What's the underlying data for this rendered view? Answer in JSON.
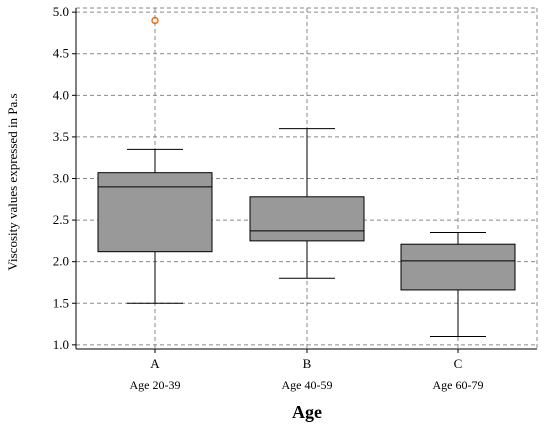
{
  "chart_data": {
    "type": "box",
    "ylabel": "Viscosity values expressed in Pa.s",
    "xlabel": "Age",
    "ylim": [
      0.95,
      5.05
    ],
    "yticks": [
      "1.0",
      "1.5",
      "2.0",
      "2.5",
      "3.0",
      "3.5",
      "4.0",
      "4.5",
      "5.0"
    ],
    "grid": true,
    "box_color": "#999999",
    "outlier_color": "#ff6600",
    "groups": [
      {
        "label": "A",
        "sublabel": "Age 20-39",
        "min": 1.5,
        "q1": 2.12,
        "median": 2.9,
        "q3": 3.07,
        "max": 3.35,
        "outliers": [
          4.9
        ]
      },
      {
        "label": "B",
        "sublabel": "Age 40-59",
        "min": 1.8,
        "q1": 2.25,
        "median": 2.37,
        "q3": 2.78,
        "max": 3.6,
        "outliers": []
      },
      {
        "label": "C",
        "sublabel": "Age 60-79",
        "min": 1.1,
        "q1": 1.66,
        "median": 2.01,
        "q3": 2.21,
        "max": 2.35,
        "outliers": []
      }
    ]
  }
}
